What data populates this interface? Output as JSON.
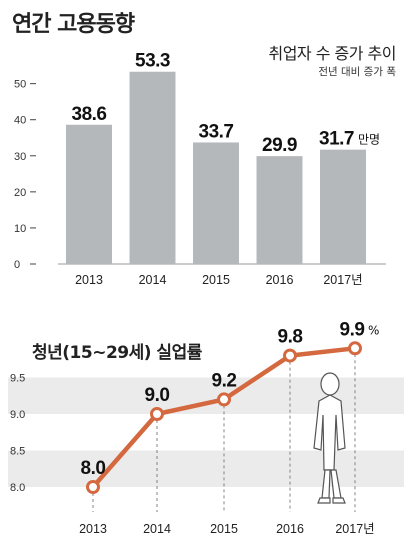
{
  "title": "연간 고용동향",
  "chart_data": [
    {
      "type": "bar",
      "title": "취업자 수 증가 추이",
      "subtitle": "전년 대비 증가 폭",
      "categories": [
        "2013",
        "2014",
        "2015",
        "2016",
        "2017년"
      ],
      "values": [
        38.6,
        53.3,
        33.7,
        29.9,
        31.7
      ],
      "value_labels": [
        "38.6",
        "53.3",
        "33.7",
        "29.9",
        "31.7"
      ],
      "value_unit": "만명",
      "y_ticks": [
        "0",
        "10",
        "20",
        "30",
        "40",
        "50"
      ],
      "ylim": [
        0,
        56
      ],
      "grid": false,
      "colors": {
        "bar": "#b5b8bb"
      }
    },
    {
      "type": "line",
      "title": "청년(15~29세) 실업률",
      "categories": [
        "2013",
        "2014",
        "2015",
        "2016",
        "2017년"
      ],
      "values": [
        8.0,
        9.0,
        9.2,
        9.8,
        9.9
      ],
      "value_labels": [
        "8.0",
        "9.0",
        "9.2",
        "9.8",
        "9.9"
      ],
      "value_unit": "%",
      "y_ticks": [
        "9.5",
        "9.0",
        "8.5",
        "8.0"
      ],
      "ylim": [
        8.0,
        10.0
      ],
      "grid": false,
      "band_colors": "#ebebeb",
      "colors": {
        "line": "#d4693f"
      }
    }
  ]
}
